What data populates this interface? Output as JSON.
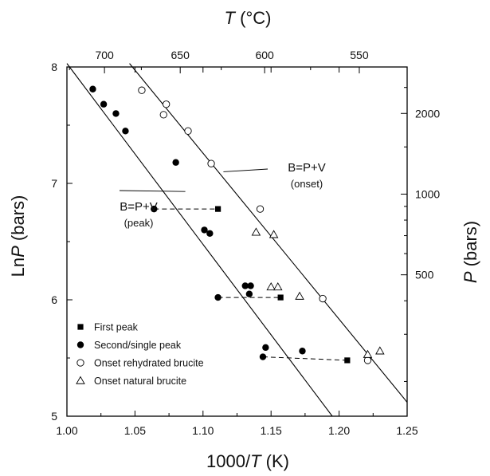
{
  "chart_data": {
    "type": "scatter",
    "x_axis": {
      "label_main": "1000/",
      "label_var": "T",
      "label_unit": " (K)",
      "range": [
        1.0,
        1.25
      ],
      "ticks": [
        1.0,
        1.05,
        1.1,
        1.15,
        1.2,
        1.25
      ],
      "tick_labels": [
        "1.00",
        "1.05",
        "1.10",
        "1.15",
        "1.20",
        "1.25"
      ]
    },
    "y_axis": {
      "label_main": "Ln",
      "label_var": "P",
      "label_unit": " (bars)",
      "range": [
        5,
        8
      ],
      "ticks": [
        5,
        6,
        7,
        8
      ],
      "tick_labels": [
        "5",
        "6",
        "7",
        "8"
      ]
    },
    "top_axis": {
      "label_var": "T",
      "label_unit": " (°C)",
      "ticks_c": [
        700,
        650,
        600,
        550
      ],
      "tick_labels": [
        "700",
        "650",
        "600",
        "550"
      ]
    },
    "right_axis": {
      "label_var": "P",
      "label_unit": " (bars)",
      "ticks_bars": [
        500,
        1000,
        2000
      ],
      "tick_labels": [
        "500",
        "1000",
        "2000"
      ]
    },
    "series": [
      {
        "name": "First peak",
        "marker": "filled-square",
        "points": [
          [
            1.111,
            6.78
          ],
          [
            1.157,
            6.02
          ],
          [
            1.206,
            5.48
          ]
        ]
      },
      {
        "name": "Second/single peak",
        "marker": "filled-circle",
        "points": [
          [
            1.019,
            7.81
          ],
          [
            1.027,
            7.68
          ],
          [
            1.036,
            7.6
          ],
          [
            1.043,
            7.45
          ],
          [
            1.08,
            7.18
          ],
          [
            1.064,
            6.78
          ],
          [
            1.101,
            6.6
          ],
          [
            1.105,
            6.57
          ],
          [
            1.131,
            6.12
          ],
          [
            1.135,
            6.12
          ],
          [
            1.134,
            6.05
          ],
          [
            1.111,
            6.02
          ],
          [
            1.146,
            5.59
          ],
          [
            1.173,
            5.56
          ],
          [
            1.144,
            5.51
          ]
        ]
      },
      {
        "name": "Onset rehydrated brucite",
        "marker": "open-circle",
        "points": [
          [
            1.055,
            7.8
          ],
          [
            1.073,
            7.68
          ],
          [
            1.071,
            7.59
          ],
          [
            1.089,
            7.45
          ],
          [
            1.106,
            7.17
          ],
          [
            1.142,
            6.78
          ],
          [
            1.188,
            6.01
          ],
          [
            1.221,
            5.48
          ]
        ]
      },
      {
        "name": "Onset natural brucite",
        "marker": "open-triangle",
        "points": [
          [
            1.139,
            6.58
          ],
          [
            1.152,
            6.56
          ],
          [
            1.15,
            6.11
          ],
          [
            1.155,
            6.11
          ],
          [
            1.171,
            6.03
          ],
          [
            1.221,
            5.53
          ],
          [
            1.23,
            5.56
          ]
        ]
      }
    ],
    "connectors": [
      [
        [
          1.064,
          6.78
        ],
        [
          1.111,
          6.78
        ]
      ],
      [
        [
          1.111,
          6.02
        ],
        [
          1.157,
          6.02
        ]
      ],
      [
        [
          1.144,
          5.51
        ],
        [
          1.206,
          5.48
        ]
      ]
    ],
    "fit_lines": [
      {
        "name": "peak",
        "from": [
          1.0,
          8.03
        ],
        "to": [
          1.195,
          5.0
        ]
      },
      {
        "name": "onset",
        "from": [
          1.046,
          8.03
        ],
        "to": [
          1.25,
          5.12
        ]
      }
    ],
    "annotations": [
      {
        "lines": [
          "B=P+V",
          "(peak)"
        ],
        "leader_to": [
          1.087,
          6.93
        ]
      },
      {
        "lines": [
          "B=P+V",
          "(onset)"
        ],
        "leader_to": [
          1.115,
          7.1
        ]
      }
    ],
    "legend": {
      "placement": "bottom-left",
      "entries": [
        "First peak",
        "Second/single peak",
        "Onset rehydrated brucite",
        "Onset natural brucite"
      ]
    },
    "grid": false
  }
}
